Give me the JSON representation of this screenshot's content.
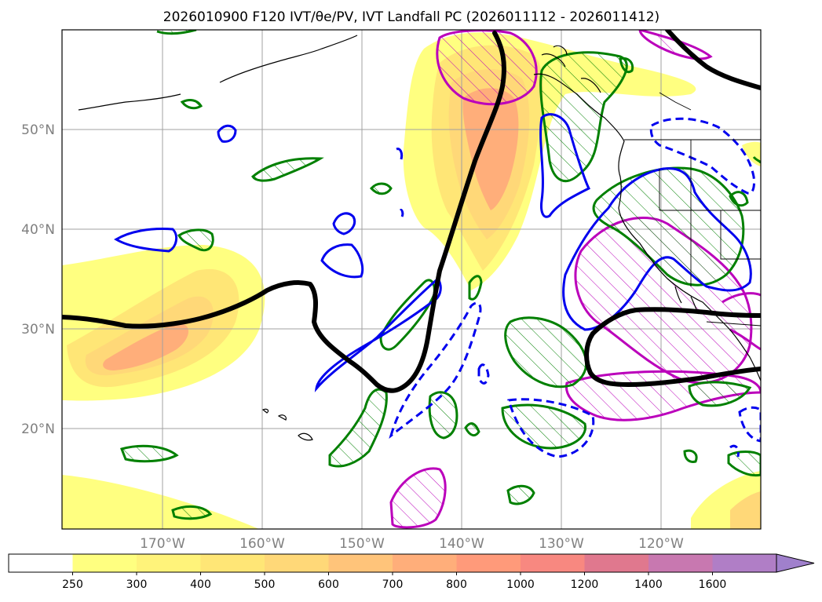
{
  "title": "2026010900 F120 IVT/θe/PV, IVT Landfall PC (2026011112 - 2026011412)",
  "map": {
    "lat_labels": [
      "50°N",
      "40°N",
      "30°N",
      "20°N"
    ],
    "lon_labels": [
      "170°W",
      "160°W",
      "150°W",
      "140°W",
      "130°W",
      "120°W"
    ],
    "gridlines": true
  },
  "colorbar": {
    "levels": [
      "250",
      "300",
      "400",
      "500",
      "600",
      "700",
      "800",
      "1000",
      "1200",
      "1400",
      "1600"
    ],
    "colors": [
      "#ffff80",
      "#fff37a",
      "#ffe676",
      "#ffd878",
      "#ffc47a",
      "#ffae7a",
      "#ff9a7a",
      "#f88880",
      "#e0788e",
      "#c878b0",
      "#b07ec6",
      "#a080cc"
    ],
    "extend": "max"
  },
  "styles": {
    "theta_e_contour": "#000000",
    "pv_positive": "#0000ee",
    "pv_negative_dashed": "#0000ee",
    "green_contour": "#008000",
    "magenta_contour": "#bb00bb"
  }
}
